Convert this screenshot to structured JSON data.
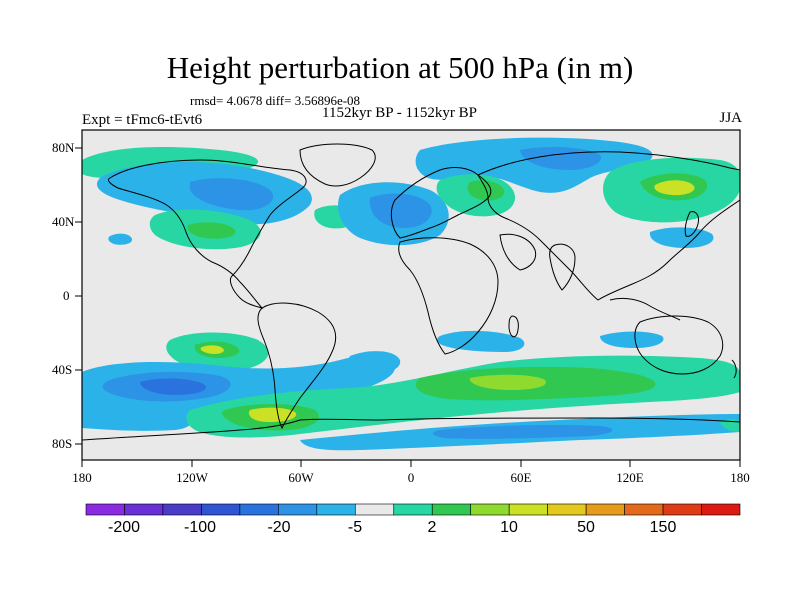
{
  "title": "Height perturbation at 500 hPa (in m)",
  "stats_text": "rmsd= 4.0678 diff= 3.56896e-08",
  "experiment_label": "Expt = tFmc6-tEvt6",
  "period_label": "1152kyr BP - 1152kyr BP",
  "season_label": "JJA",
  "latitude_ticks": [
    "80N",
    "40N",
    "0",
    "40S",
    "80S"
  ],
  "longitude_ticks": [
    "180",
    "120W",
    "60W",
    "0",
    "60E",
    "120E",
    "180"
  ],
  "colorbar": {
    "colors": [
      "#8a2be2",
      "#6a2fd6",
      "#4a3cc9",
      "#2f55d2",
      "#2a73de",
      "#2d93e6",
      "#2bb2e8",
      "#e9e9e9",
      "#27d6a2",
      "#31c852",
      "#8fda2e",
      "#cbe125",
      "#e3c820",
      "#e79b1d",
      "#e36a1a",
      "#de3b17",
      "#dd1a12"
    ],
    "labels": [
      "-200",
      "-100",
      "-20",
      "-5",
      "2",
      "10",
      "50",
      "150"
    ]
  },
  "legend_colors": {
    "light_blue": "#2bb2e8",
    "mid_blue": "#2d93e6",
    "blue": "#2a73de",
    "teal": "#27d6a2",
    "green": "#31c852",
    "yellowgreen": "#8fda2e",
    "neutral": "#e9e9e9"
  }
}
